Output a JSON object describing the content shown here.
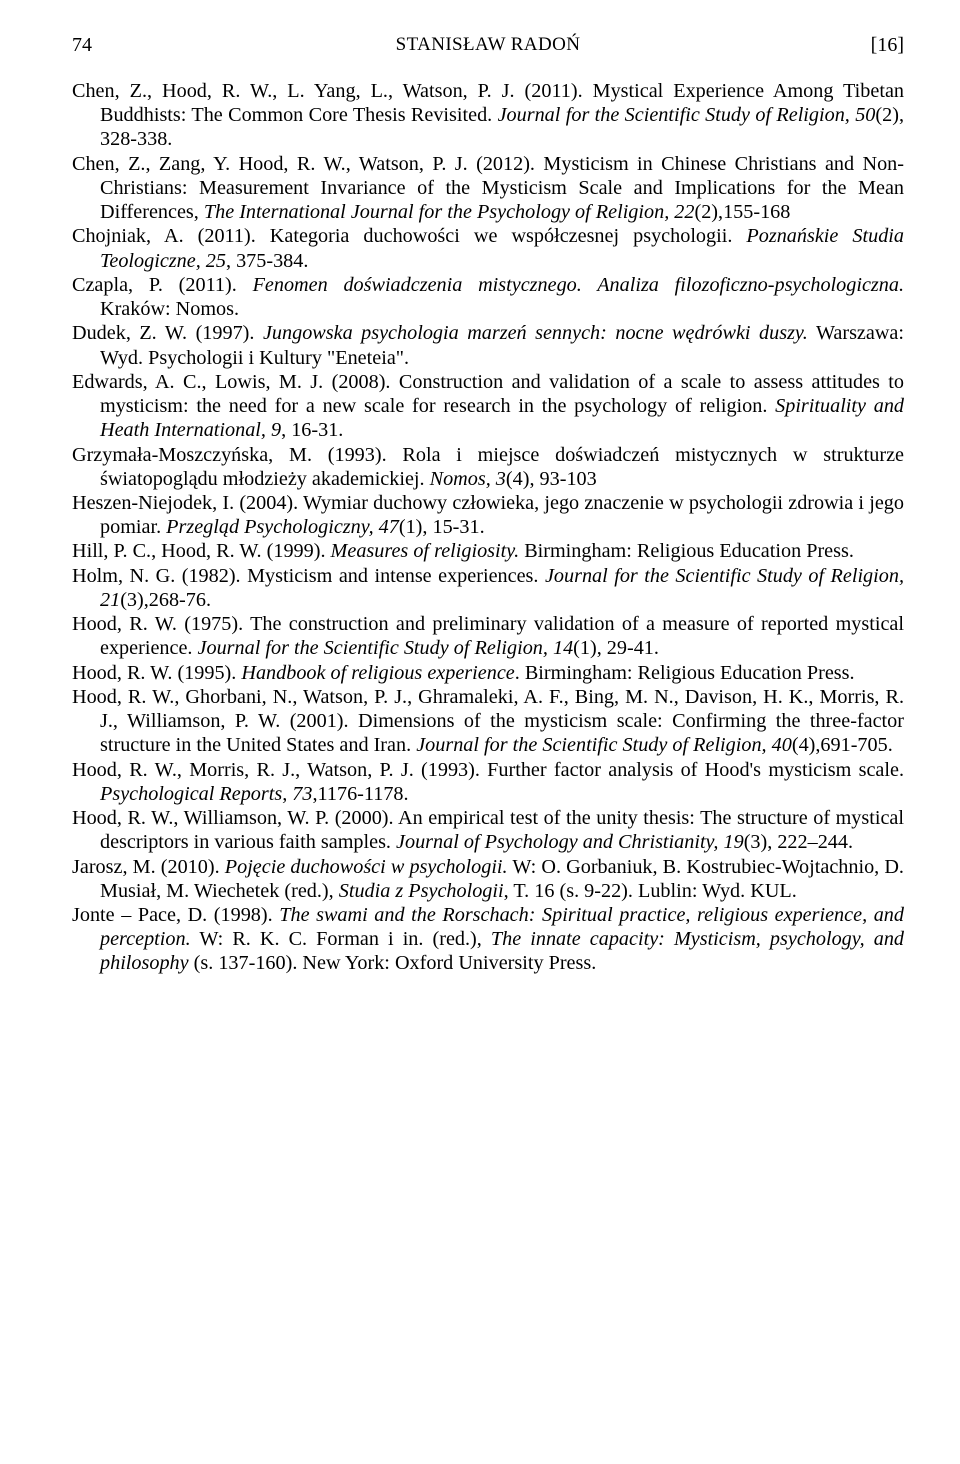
{
  "header": {
    "page_number": "74",
    "author": "STANISŁAW RADOŃ",
    "bracket_number": "[16]"
  },
  "refs": {
    "r1_a": "Chen, Z., Hood, R. W., L. Yang, L., Watson, P. J. (2011). Mystical Experience Among Tibetan Buddhists: The Common Core Thesis Revisited. ",
    "r1_b": "Journal for the Scientific Study of Religion, 50",
    "r1_c": "(2), 328-338.",
    "r2_a": "Chen, Z., Zang, Y. Hood, R. W., Watson, P. J. (2012). Mysticism in Chinese Christians and Non-Christians: Measurement Invariance of the Mysticism Scale and Implications for the Mean Differences, ",
    "r2_b": "The International Journal for the Psychology of Religion, 22",
    "r2_c": "(2),155-168",
    "r3_a": "Chojniak, A. (2011). Kategoria duchowości we współczesnej psychologii. ",
    "r3_b": "Poznańskie Studia Teologiczne, 25",
    "r3_c": ", 375-384.",
    "r4_a": "Czapla, P. (2011). ",
    "r4_b": "Fenomen doświadczenia mistycznego. Analiza filozoficzno-psychologiczna.",
    "r4_c": " Kraków: Nomos.",
    "r5_a": "Dudek, Z. W. (1997). ",
    "r5_b": "Jungowska psychologia marzeń sennych: nocne wędrówki duszy.",
    "r5_c": " Warszawa: Wyd. Psychologii i Kultury \"Eneteia\".",
    "r6_a": "Edwards, A. C., Lowis, M. J. (2008). Construction and validation of a scale to assess attitudes to mysticism: the need for a new scale for research in the psychology of religion. ",
    "r6_b": "Spirituality and Heath International, 9",
    "r6_c": ", 16-31.",
    "r7_a": "Grzymała-Moszczyńska, M. (1993). Rola i miejsce doświadczeń mistycznych w strukturze światopoglądu młodzieży akademickiej. ",
    "r7_b": "Nomos, 3",
    "r7_c": "(4), 93-103",
    "r8_a": "Heszen-Niejodek, I. (2004). Wymiar duchowy człowieka, jego znaczenie w psychologii zdrowia i jego pomiar. ",
    "r8_b": "Przegląd Psychologiczny, 47",
    "r8_c": "(1), 15-31.",
    "r9_a": "Hill, P. C., Hood, R. W. (1999). ",
    "r9_b": "Measures of religiosity.",
    "r9_c": " Birmingham: Religious Education Press.",
    "r10_a": "Holm, N. G. (1982). Mysticism and intense experiences. ",
    "r10_b": "Journal for the Scientific Study of Religion, 21",
    "r10_c": "(3),268-76.",
    "r11_a": "Hood, R. W. (1975). The construction and preliminary validation of a measure of reported mystical experience. ",
    "r11_b": "Journal for the Scientific Study of Religion, 14",
    "r11_c": "(1), 29-41.",
    "r12_a": "Hood, R. W. (1995). ",
    "r12_b": "Handbook of religious experience",
    "r12_c": ". Birmingham: Religious Education Press.",
    "r13_a": "Hood, R. W., Ghorbani, N., Watson, P. J., Ghramaleki, A. F., Bing, M. N., Davison, H. K., Morris, R. J., Williamson, P. W. (2001). Dimensions of the mysticism scale: Confirming the three-factor structure in the United States and Iran. ",
    "r13_b": "Journal for the Scientific Study of Religion, 40",
    "r13_c": "(4),691-705.",
    "r14_a": "Hood, R. W., Morris, R. J., Watson, P. J. (1993). Further factor analysis of Hood's mysticism scale. ",
    "r14_b": "Psychological Reports, 73",
    "r14_c": ",1176-1178.",
    "r15_a": "Hood, R. W., Williamson, W. P. (2000). An empirical test of the unity thesis: The structure of mystical descriptors in various faith samples. ",
    "r15_b": "Journal of Psychology and Christianity, 19",
    "r15_c": "(3), 222–244.",
    "r16_a": "Jarosz, M. (2010). ",
    "r16_b": "Pojęcie duchowości w psychologii.",
    "r16_c": " W: O. Gorbaniuk, B. Kostrubiec-Wojtachnio, D. Musiał, M. Wiechetek (red.), ",
    "r16_d": "Studia z Psychologii",
    "r16_e": ", T. 16 (s. 9-22). Lublin: Wyd. KUL.",
    "r17_a": "Jonte – Pace, D. (1998). ",
    "r17_b": "The swami and the Rorschach: Spiritual practice, religious experience, and perception.",
    "r17_c": " W: R. K. C. Forman i in. (red.), ",
    "r17_d": "The innate capacity: Mysticism, psychology, and philosophy",
    "r17_e": " (s. 137-160). New York: Oxford University Press."
  }
}
